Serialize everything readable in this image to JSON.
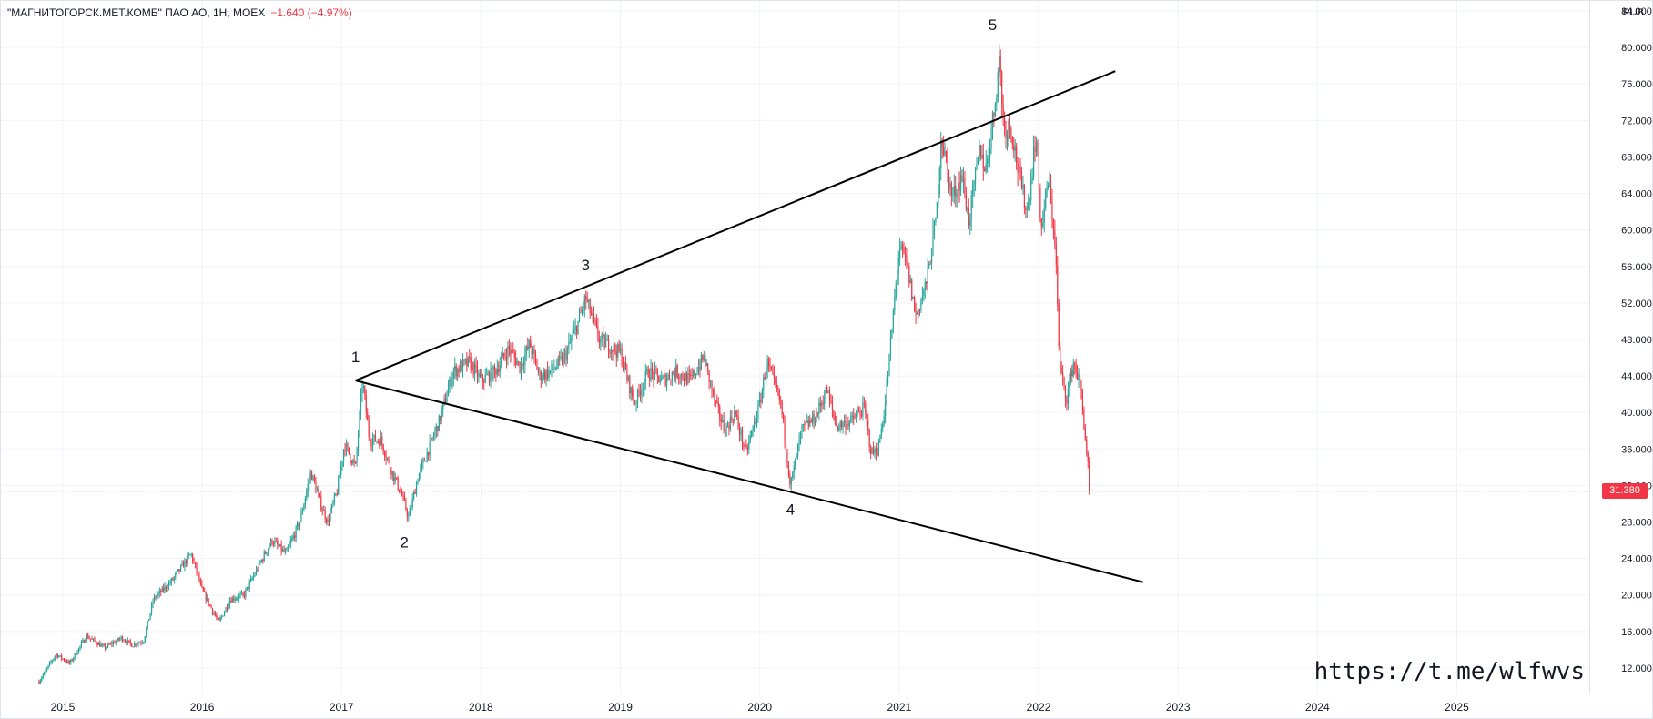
{
  "header": {
    "symbol": "\"МАГНИТОГОРСК.МЕТ.КОМБ\" ПАО АО, 1Н, MOEX",
    "change": "−1.640 (−4.97%)"
  },
  "currency": "RUB",
  "watermark": "https://t.me/wlfwvs",
  "last_price_label": "31.380",
  "colors": {
    "up": "#26a69a",
    "down": "#f23645",
    "grid": "#f0f3fa",
    "line": "#000000"
  },
  "chart_data": {
    "type": "candlestick",
    "x_ticks": [
      "2015",
      "2016",
      "2017",
      "2018",
      "2019",
      "2020",
      "2021",
      "2022",
      "2023",
      "2024",
      "2025"
    ],
    "x_range": [
      2014.55,
      2025.95
    ],
    "y_range": [
      9.2,
      85.2
    ],
    "y_ticks": [
      12,
      16,
      20,
      24,
      28,
      32,
      36,
      40,
      44,
      48,
      52,
      56,
      60,
      64,
      68,
      72,
      76,
      80,
      84
    ],
    "y_tick_labels": [
      "12.000",
      "16.000",
      "20.000",
      "24.000",
      "28.000",
      "32.000",
      "36.000",
      "40.000",
      "44.000",
      "48.000",
      "52.000",
      "56.000",
      "60.000",
      "64.000",
      "68.000",
      "72.000",
      "76.000",
      "80.000",
      "84.000"
    ],
    "last_price": 31.38,
    "wave_labels": [
      {
        "label": "1",
        "x": 2017.1,
        "y": 45.5
      },
      {
        "label": "2",
        "x": 2017.45,
        "y": 25.2
      },
      {
        "label": "3",
        "x": 2018.75,
        "y": 55.6
      },
      {
        "label": "4",
        "x": 2020.22,
        "y": 28.8
      },
      {
        "label": "5",
        "x": 2021.67,
        "y": 81.9
      }
    ],
    "trendlines": [
      {
        "name": "upper",
        "from": [
          2017.1,
          43.5
        ],
        "to": [
          2022.55,
          77.4
        ]
      },
      {
        "name": "lower",
        "from": [
          2017.1,
          43.5
        ],
        "to": [
          2022.75,
          21.4
        ]
      }
    ],
    "price_path": [
      [
        2014.83,
        10.5
      ],
      [
        2014.95,
        13.5
      ],
      [
        2015.05,
        12.5
      ],
      [
        2015.17,
        15.5
      ],
      [
        2015.3,
        14.2
      ],
      [
        2015.42,
        15.3
      ],
      [
        2015.5,
        14.5
      ],
      [
        2015.58,
        15.0
      ],
      [
        2015.65,
        19.5
      ],
      [
        2015.78,
        21.5
      ],
      [
        2015.92,
        24.5
      ],
      [
        2016.0,
        20.5
      ],
      [
        2016.05,
        19.0
      ],
      [
        2016.12,
        17.0
      ],
      [
        2016.2,
        19.5
      ],
      [
        2016.3,
        20.0
      ],
      [
        2016.4,
        23.0
      ],
      [
        2016.5,
        26.0
      ],
      [
        2016.6,
        24.5
      ],
      [
        2016.7,
        28.0
      ],
      [
        2016.78,
        33.5
      ],
      [
        2016.85,
        30.0
      ],
      [
        2016.9,
        28.0
      ],
      [
        2016.97,
        31.5
      ],
      [
        2017.02,
        36.5
      ],
      [
        2017.1,
        34.0
      ],
      [
        2017.15,
        43.5
      ],
      [
        2017.2,
        37.0
      ],
      [
        2017.28,
        37.0
      ],
      [
        2017.35,
        34.0
      ],
      [
        2017.43,
        31.0
      ],
      [
        2017.48,
        28.5
      ],
      [
        2017.55,
        33.0
      ],
      [
        2017.6,
        35.0
      ],
      [
        2017.7,
        39.0
      ],
      [
        2017.8,
        44.5
      ],
      [
        2017.92,
        45.5
      ],
      [
        2018.0,
        43.5
      ],
      [
        2018.1,
        44.5
      ],
      [
        2018.2,
        47.0
      ],
      [
        2018.28,
        45.0
      ],
      [
        2018.35,
        47.5
      ],
      [
        2018.42,
        44.0
      ],
      [
        2018.5,
        44.5
      ],
      [
        2018.6,
        46.0
      ],
      [
        2018.7,
        50.0
      ],
      [
        2018.75,
        52.5
      ],
      [
        2018.85,
        48.0
      ],
      [
        2019.0,
        46.5
      ],
      [
        2019.1,
        41.0
      ],
      [
        2019.2,
        44.5
      ],
      [
        2019.3,
        43.5
      ],
      [
        2019.4,
        44.5
      ],
      [
        2019.5,
        43.5
      ],
      [
        2019.6,
        46.0
      ],
      [
        2019.68,
        41.0
      ],
      [
        2019.75,
        38.0
      ],
      [
        2019.82,
        40.0
      ],
      [
        2019.9,
        35.5
      ],
      [
        2020.0,
        41.0
      ],
      [
        2020.05,
        45.5
      ],
      [
        2020.15,
        41.0
      ],
      [
        2020.22,
        32.0
      ],
      [
        2020.3,
        38.0
      ],
      [
        2020.4,
        39.5
      ],
      [
        2020.48,
        42.5
      ],
      [
        2020.55,
        38.5
      ],
      [
        2020.65,
        39.0
      ],
      [
        2020.75,
        40.5
      ],
      [
        2020.8,
        35.5
      ],
      [
        2020.85,
        36.0
      ],
      [
        2020.9,
        41.0
      ],
      [
        2020.95,
        49.5
      ],
      [
        2021.0,
        58.0
      ],
      [
        2021.05,
        56.5
      ],
      [
        2021.12,
        50.5
      ],
      [
        2021.2,
        54.5
      ],
      [
        2021.27,
        62.0
      ],
      [
        2021.3,
        70.5
      ],
      [
        2021.38,
        63.5
      ],
      [
        2021.45,
        66.0
      ],
      [
        2021.5,
        61.0
      ],
      [
        2021.58,
        69.0
      ],
      [
        2021.62,
        66.5
      ],
      [
        2021.68,
        73.0
      ],
      [
        2021.72,
        79.0
      ],
      [
        2021.75,
        71.0
      ],
      [
        2021.8,
        71.5
      ],
      [
        2021.87,
        65.0
      ],
      [
        2021.92,
        62.0
      ],
      [
        2021.98,
        70.5
      ],
      [
        2022.02,
        60.0
      ],
      [
        2022.07,
        65.5
      ],
      [
        2022.12,
        58.5
      ],
      [
        2022.15,
        45.0
      ],
      [
        2022.2,
        41.5
      ],
      [
        2022.25,
        45.5
      ],
      [
        2022.3,
        43.0
      ],
      [
        2022.33,
        38.0
      ],
      [
        2022.37,
        31.4
      ]
    ]
  }
}
